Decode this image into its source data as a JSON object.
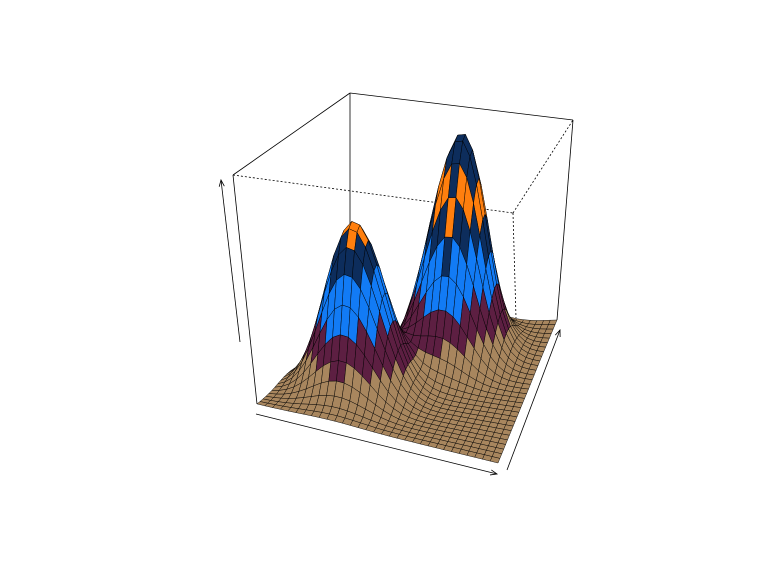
{
  "chart_data": {
    "type": "surface",
    "title": "",
    "xlabel": "",
    "ylabel": "",
    "zlabel": "",
    "grid": {
      "nx": 32,
      "ny": 32
    },
    "x_range": [
      -3,
      3
    ],
    "y_range": [
      -3,
      3
    ],
    "z_range": [
      0,
      1
    ],
    "peaks": [
      {
        "x": -1.2,
        "y": -0.9,
        "height": 0.72,
        "spread": 0.7
      },
      {
        "x": 0.6,
        "y": 1.4,
        "height": 1.0,
        "spread": 0.7
      }
    ],
    "view": {
      "theta_deg": 30,
      "phi_deg": 20
    },
    "color_bands": [
      {
        "upto": 0.15,
        "color": "#a8865e"
      },
      {
        "upto": 0.3,
        "color": "#5d1f42"
      },
      {
        "upto": 0.5,
        "color": "#127bf5"
      },
      {
        "upto": 0.65,
        "color": "#0d2d5c"
      },
      {
        "upto": 0.8,
        "color": "#ff7f0e"
      },
      {
        "upto": 1.01,
        "color": "#0d2d5c"
      }
    ],
    "top_band_color": "#127bf5",
    "box": true,
    "axes_arrows": true
  }
}
